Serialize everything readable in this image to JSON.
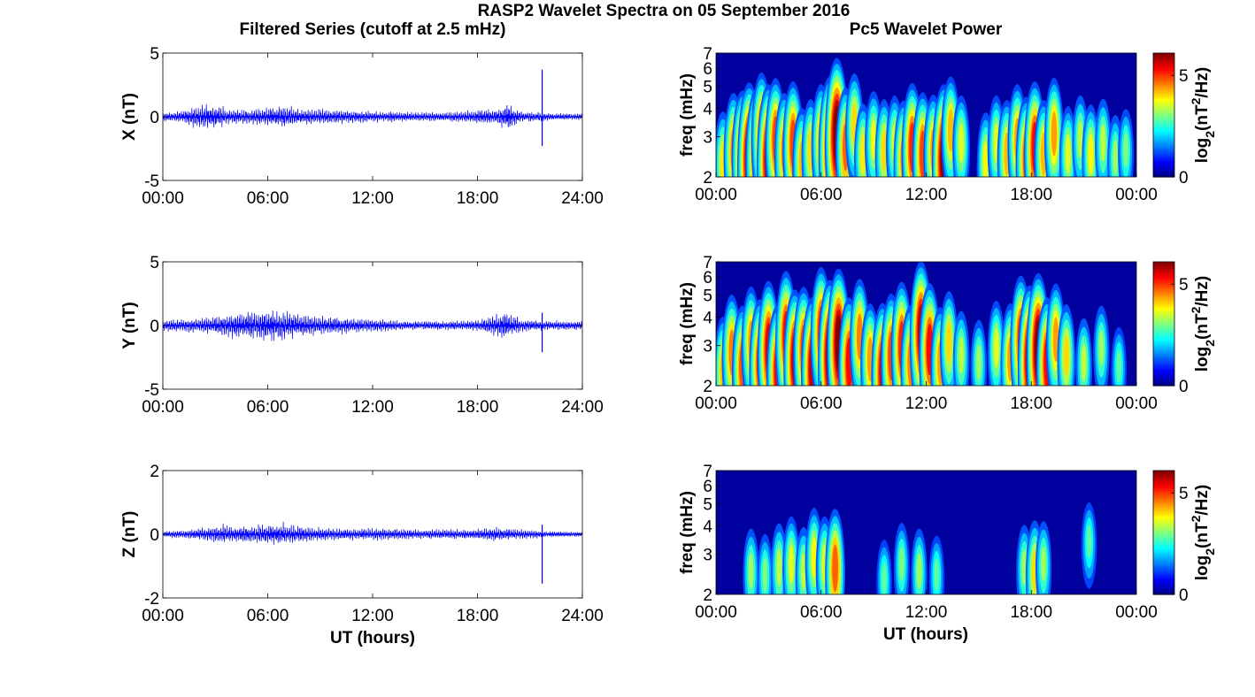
{
  "figure": {
    "suptitle": "RASP2 Wavelet Spectra on 05 September 2016",
    "left_title": "Filtered Series (cutoff at 2.5 mHz)",
    "right_title": "Pc5 Wavelet Power",
    "xlabel": "UT (hours)"
  },
  "chart_data": [
    {
      "type": "line",
      "ylabel": "X (nT)",
      "xlim": [
        0,
        24
      ],
      "ylim": [
        -5,
        5
      ],
      "xticks": [
        "00:00",
        "06:00",
        "12:00",
        "18:00",
        "24:00"
      ],
      "yticks": [
        "-5",
        "0",
        "5"
      ],
      "x": [
        0,
        1,
        1.8,
        2.5,
        3,
        4,
        5,
        6,
        7,
        8,
        9,
        10,
        11,
        12,
        13,
        14,
        15,
        16,
        17,
        18,
        19,
        19.8,
        20.5,
        21.5,
        22,
        23,
        24
      ],
      "envelope": [
        0.3,
        0.35,
        0.7,
        0.8,
        0.75,
        0.45,
        0.5,
        0.55,
        0.75,
        0.5,
        0.5,
        0.45,
        0.4,
        0.35,
        0.35,
        0.3,
        0.3,
        0.3,
        0.35,
        0.45,
        0.5,
        0.9,
        0.35,
        0.3,
        0.25,
        0.2,
        0.2
      ],
      "spike": {
        "x": 21.7,
        "ymax": 3.7,
        "ymin": -2.3
      },
      "color": "#0000ff"
    },
    {
      "type": "line",
      "ylabel": "Y (nT)",
      "xlim": [
        0,
        24
      ],
      "ylim": [
        -5,
        5
      ],
      "xticks": [
        "00:00",
        "06:00",
        "12:00",
        "18:00",
        "24:00"
      ],
      "yticks": [
        "-5",
        "0",
        "5"
      ],
      "x": [
        0,
        1,
        2,
        3,
        4,
        5,
        6,
        7,
        8,
        9,
        10,
        11,
        12,
        13,
        14,
        15,
        16,
        17,
        18,
        19,
        19.6,
        20.5,
        21.5,
        22,
        23,
        24
      ],
      "envelope": [
        0.35,
        0.4,
        0.45,
        0.55,
        0.8,
        0.9,
        1.0,
        0.95,
        0.7,
        0.6,
        0.55,
        0.45,
        0.4,
        0.35,
        0.3,
        0.3,
        0.3,
        0.3,
        0.35,
        0.7,
        0.9,
        0.4,
        0.35,
        0.3,
        0.3,
        0.3
      ],
      "spike": {
        "x": 21.7,
        "ymax": 1.0,
        "ymin": -2.1
      },
      "color": "#0000ff"
    },
    {
      "type": "line",
      "ylabel": "Z (nT)",
      "xlim": [
        0,
        24
      ],
      "ylim": [
        -2,
        2
      ],
      "xticks": [
        "00:00",
        "06:00",
        "12:00",
        "18:00",
        "24:00"
      ],
      "yticks": [
        "-2",
        "0",
        "2"
      ],
      "x": [
        0,
        1,
        2,
        3,
        3.5,
        4,
        5,
        6,
        7,
        8,
        9,
        10,
        11,
        12,
        13,
        14,
        15,
        16,
        17,
        18,
        19,
        20,
        21,
        22,
        23,
        24
      ],
      "envelope": [
        0.08,
        0.1,
        0.15,
        0.2,
        0.25,
        0.2,
        0.22,
        0.25,
        0.3,
        0.2,
        0.18,
        0.15,
        0.15,
        0.15,
        0.15,
        0.13,
        0.12,
        0.12,
        0.13,
        0.15,
        0.18,
        0.15,
        0.12,
        0.08,
        0.07,
        0.06
      ],
      "spike": {
        "x": 21.7,
        "ymax": 0.3,
        "ymin": -1.55
      },
      "color": "#0000ff"
    },
    {
      "type": "heatmap",
      "ylabel": "freq (mHz)",
      "yscale": "log",
      "xlim": [
        0,
        24
      ],
      "ylim": [
        2,
        7
      ],
      "xticks": [
        "00:00",
        "06:00",
        "12:00",
        "18:00",
        "00:00"
      ],
      "yticks": [
        "2",
        "3",
        "4",
        "5",
        "6",
        "7"
      ],
      "colorbar": {
        "label": "log2(nT2/Hz)",
        "ticks": [
          "0",
          "5"
        ],
        "max": 6.1,
        "colormap": "jet"
      },
      "bursts": [
        {
          "x": 0.4,
          "f": 2.4,
          "peak": 3.5
        },
        {
          "x": 1.0,
          "f": 2.7,
          "peak": 4.2
        },
        {
          "x": 1.5,
          "f": 2.6,
          "peak": 4.8
        },
        {
          "x": 1.9,
          "f": 2.5,
          "peak": 6.0
        },
        {
          "x": 2.3,
          "f": 2.6,
          "peak": 5.0
        },
        {
          "x": 2.6,
          "f": 3.2,
          "peak": 4.5
        },
        {
          "x": 3.0,
          "f": 2.5,
          "peak": 5.8
        },
        {
          "x": 3.4,
          "f": 3.0,
          "peak": 4.6
        },
        {
          "x": 3.9,
          "f": 2.7,
          "peak": 4.2
        },
        {
          "x": 4.4,
          "f": 2.9,
          "peak": 4.6
        },
        {
          "x": 4.9,
          "f": 2.4,
          "peak": 3.8
        },
        {
          "x": 5.4,
          "f": 2.7,
          "peak": 3.6
        },
        {
          "x": 6.0,
          "f": 3.0,
          "peak": 4.0
        },
        {
          "x": 6.5,
          "f": 2.8,
          "peak": 5.5
        },
        {
          "x": 6.9,
          "f": 3.2,
          "peak": 6.0
        },
        {
          "x": 7.4,
          "f": 2.8,
          "peak": 4.4
        },
        {
          "x": 7.9,
          "f": 3.5,
          "peak": 3.6
        },
        {
          "x": 8.4,
          "f": 2.6,
          "peak": 3.5
        },
        {
          "x": 9.0,
          "f": 3.0,
          "peak": 3.3
        },
        {
          "x": 9.6,
          "f": 2.7,
          "peak": 3.6
        },
        {
          "x": 10.2,
          "f": 2.9,
          "peak": 3.2
        },
        {
          "x": 10.7,
          "f": 2.5,
          "peak": 4.2
        },
        {
          "x": 11.2,
          "f": 2.8,
          "peak": 4.8
        },
        {
          "x": 11.8,
          "f": 2.6,
          "peak": 4.6
        },
        {
          "x": 12.4,
          "f": 2.7,
          "peak": 4.0
        },
        {
          "x": 13.0,
          "f": 2.5,
          "peak": 5.8
        },
        {
          "x": 13.4,
          "f": 3.3,
          "peak": 3.8
        },
        {
          "x": 14.0,
          "f": 2.9,
          "peak": 3.2
        },
        {
          "x": 15.4,
          "f": 2.4,
          "peak": 3.4
        },
        {
          "x": 16.0,
          "f": 2.9,
          "peak": 3.2
        },
        {
          "x": 16.6,
          "f": 2.6,
          "peak": 3.8
        },
        {
          "x": 17.2,
          "f": 3.0,
          "peak": 4.0
        },
        {
          "x": 17.7,
          "f": 2.5,
          "peak": 4.5
        },
        {
          "x": 18.2,
          "f": 2.8,
          "peak": 5.0
        },
        {
          "x": 18.7,
          "f": 2.6,
          "peak": 3.8
        },
        {
          "x": 19.3,
          "f": 3.2,
          "peak": 4.0
        },
        {
          "x": 20.1,
          "f": 2.6,
          "peak": 3.2
        },
        {
          "x": 20.8,
          "f": 3.0,
          "peak": 3.0
        },
        {
          "x": 21.4,
          "f": 2.6,
          "peak": 3.4
        },
        {
          "x": 22.1,
          "f": 2.9,
          "peak": 3.0
        },
        {
          "x": 22.8,
          "f": 2.5,
          "peak": 2.8
        },
        {
          "x": 23.4,
          "f": 2.7,
          "peak": 2.6
        }
      ]
    },
    {
      "type": "heatmap",
      "ylabel": "freq (mHz)",
      "yscale": "log",
      "xlim": [
        0,
        24
      ],
      "ylim": [
        2,
        7
      ],
      "xticks": [
        "00:00",
        "06:00",
        "12:00",
        "18:00",
        "00:00"
      ],
      "yticks": [
        "2",
        "3",
        "4",
        "5",
        "6",
        "7"
      ],
      "colorbar": {
        "label": "log2(nT2/Hz)",
        "ticks": [
          "0",
          "5"
        ],
        "max": 6.1,
        "colormap": "jet"
      },
      "bursts": [
        {
          "x": 0.4,
          "f": 2.4,
          "peak": 3.8
        },
        {
          "x": 0.9,
          "f": 2.9,
          "peak": 4.2
        },
        {
          "x": 1.5,
          "f": 2.5,
          "peak": 4.5
        },
        {
          "x": 2.0,
          "f": 3.2,
          "peak": 4.0
        },
        {
          "x": 2.5,
          "f": 2.6,
          "peak": 4.8
        },
        {
          "x": 3.0,
          "f": 3.0,
          "peak": 5.2
        },
        {
          "x": 3.5,
          "f": 2.4,
          "peak": 5.0
        },
        {
          "x": 4.0,
          "f": 3.4,
          "peak": 5.0
        },
        {
          "x": 4.5,
          "f": 2.7,
          "peak": 5.4
        },
        {
          "x": 5.0,
          "f": 3.0,
          "peak": 4.6
        },
        {
          "x": 5.5,
          "f": 2.5,
          "peak": 5.4
        },
        {
          "x": 6.0,
          "f": 3.6,
          "peak": 4.8
        },
        {
          "x": 6.5,
          "f": 2.8,
          "peak": 6.0
        },
        {
          "x": 7.0,
          "f": 3.2,
          "peak": 5.8
        },
        {
          "x": 7.6,
          "f": 2.6,
          "peak": 5.0
        },
        {
          "x": 8.2,
          "f": 3.4,
          "peak": 4.2
        },
        {
          "x": 8.8,
          "f": 2.7,
          "peak": 4.0
        },
        {
          "x": 9.5,
          "f": 2.4,
          "peak": 5.2
        },
        {
          "x": 10.0,
          "f": 2.8,
          "peak": 4.6
        },
        {
          "x": 10.6,
          "f": 3.1,
          "peak": 4.8
        },
        {
          "x": 11.1,
          "f": 2.6,
          "peak": 4.2
        },
        {
          "x": 11.7,
          "f": 3.6,
          "peak": 5.4
        },
        {
          "x": 12.2,
          "f": 3.0,
          "peak": 5.0
        },
        {
          "x": 12.8,
          "f": 2.6,
          "peak": 4.0
        },
        {
          "x": 13.3,
          "f": 3.2,
          "peak": 3.6
        },
        {
          "x": 14.0,
          "f": 2.8,
          "peak": 3.0
        },
        {
          "x": 15.0,
          "f": 2.6,
          "peak": 2.8
        },
        {
          "x": 16.0,
          "f": 3.0,
          "peak": 3.2
        },
        {
          "x": 16.8,
          "f": 2.7,
          "peak": 4.0
        },
        {
          "x": 17.4,
          "f": 3.3,
          "peak": 4.8
        },
        {
          "x": 17.9,
          "f": 2.7,
          "peak": 5.8
        },
        {
          "x": 18.4,
          "f": 3.0,
          "peak": 6.0
        },
        {
          "x": 18.9,
          "f": 2.6,
          "peak": 5.0
        },
        {
          "x": 19.4,
          "f": 3.3,
          "peak": 4.0
        },
        {
          "x": 20.0,
          "f": 2.8,
          "peak": 3.6
        },
        {
          "x": 21.0,
          "f": 2.6,
          "peak": 3.0
        },
        {
          "x": 22.0,
          "f": 3.0,
          "peak": 2.8
        },
        {
          "x": 23.0,
          "f": 2.5,
          "peak": 2.4
        }
      ]
    },
    {
      "type": "heatmap",
      "ylabel": "freq (mHz)",
      "yscale": "log",
      "xlim": [
        0,
        24
      ],
      "ylim": [
        2,
        7
      ],
      "xticks": [
        "00:00",
        "06:00",
        "12:00",
        "18:00",
        "00:00"
      ],
      "yticks": [
        "2",
        "3",
        "4",
        "5",
        "6",
        "7"
      ],
      "colorbar": {
        "label": "log2(nT2/Hz)",
        "ticks": [
          "0",
          "5"
        ],
        "max": 6.1,
        "colormap": "jet"
      },
      "bursts": [
        {
          "x": 2.0,
          "f": 2.6,
          "peak": 2.8
        },
        {
          "x": 2.8,
          "f": 2.5,
          "peak": 2.6
        },
        {
          "x": 3.6,
          "f": 2.7,
          "peak": 3.0
        },
        {
          "x": 4.3,
          "f": 2.8,
          "peak": 3.2
        },
        {
          "x": 5.0,
          "f": 2.6,
          "peak": 3.0
        },
        {
          "x": 5.6,
          "f": 3.0,
          "peak": 3.4
        },
        {
          "x": 6.2,
          "f": 2.8,
          "peak": 3.2
        },
        {
          "x": 6.8,
          "f": 2.7,
          "peak": 4.4
        },
        {
          "x": 9.6,
          "f": 2.4,
          "peak": 2.4
        },
        {
          "x": 10.6,
          "f": 2.8,
          "peak": 2.6
        },
        {
          "x": 11.6,
          "f": 2.6,
          "peak": 2.8
        },
        {
          "x": 12.6,
          "f": 2.5,
          "peak": 2.4
        },
        {
          "x": 17.6,
          "f": 2.7,
          "peak": 2.8
        },
        {
          "x": 18.2,
          "f": 2.6,
          "peak": 3.6
        },
        {
          "x": 18.7,
          "f": 2.8,
          "peak": 2.8
        },
        {
          "x": 21.3,
          "f": 3.5,
          "peak": 2.4
        }
      ]
    }
  ]
}
